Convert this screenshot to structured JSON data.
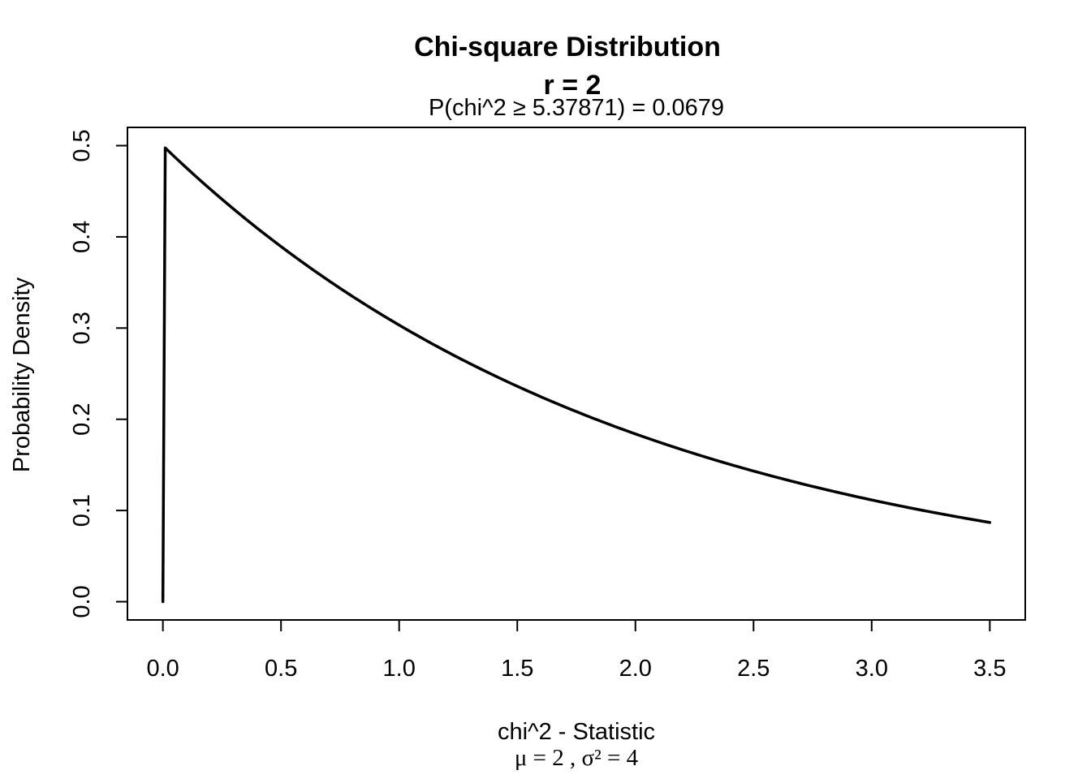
{
  "chart_data": {
    "type": "line",
    "title": "Chi-square Distribution",
    "title_line2": "r  =  2",
    "subtitle": "P(chi^2 ≥ 5.37871) = 0.0679",
    "xlabel": "chi^2 - Statistic",
    "xlabel_line2": "μ = 2 ,  σ² = 4",
    "ylabel": "Probability Density",
    "xlim": [
      -0.15,
      3.65
    ],
    "ylim": [
      -0.02,
      0.52
    ],
    "x_ticks": [
      0.0,
      0.5,
      1.0,
      1.5,
      2.0,
      2.5,
      3.0,
      3.5
    ],
    "x_tick_labels": [
      "0.0",
      "0.5",
      "1.0",
      "1.5",
      "2.0",
      "2.5",
      "3.0",
      "3.5"
    ],
    "y_ticks": [
      0.0,
      0.1,
      0.2,
      0.3,
      0.4,
      0.5
    ],
    "y_tick_labels": [
      "0.0",
      "0.1",
      "0.2",
      "0.3",
      "0.4",
      "0.5"
    ],
    "grid": false,
    "line_color": "#000000",
    "series": [
      {
        "x": [
          0.0,
          0.01,
          0.25,
          0.5,
          0.75,
          1.0,
          1.25,
          1.5,
          1.75,
          2.0,
          2.25,
          2.5,
          2.75,
          3.0,
          3.25,
          3.5
        ],
        "values": [
          0.0,
          0.4975,
          0.4412,
          0.3894,
          0.3437,
          0.3033,
          0.2676,
          0.2362,
          0.2084,
          0.1839,
          0.1623,
          0.1433,
          0.1264,
          0.1116,
          0.0985,
          0.0869
        ]
      }
    ]
  }
}
